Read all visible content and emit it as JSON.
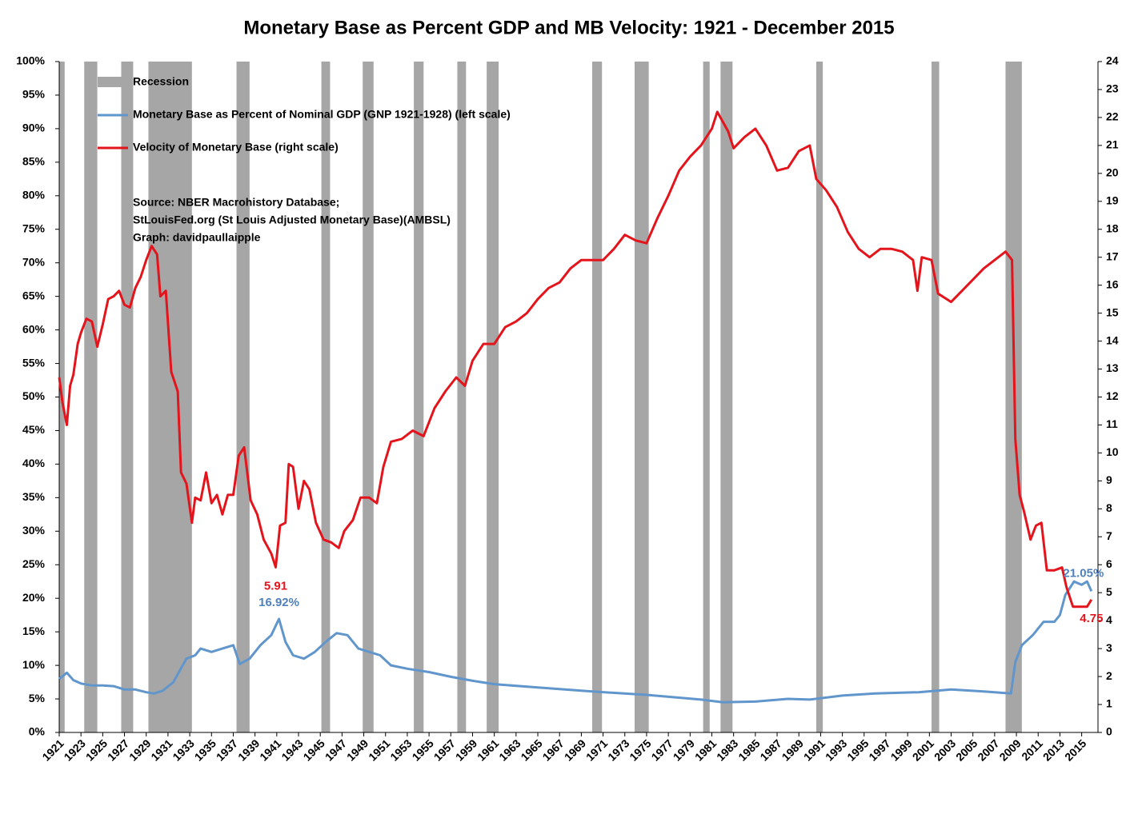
{
  "chart_data": {
    "type": "line",
    "title": "Monetary Base as Percent GDP and MB Velocity: 1921 - December 2015",
    "xlim": [
      1921,
      2016.5
    ],
    "xticks": [
      1921,
      1923,
      1925,
      1927,
      1929,
      1931,
      1933,
      1935,
      1937,
      1939,
      1941,
      1943,
      1945,
      1947,
      1949,
      1951,
      1953,
      1955,
      1957,
      1959,
      1961,
      1963,
      1965,
      1967,
      1969,
      1971,
      1973,
      1975,
      1977,
      1979,
      1981,
      1983,
      1985,
      1987,
      1989,
      1991,
      1993,
      1995,
      1997,
      1999,
      2001,
      2003,
      2005,
      2007,
      2009,
      2011,
      2013,
      2015
    ],
    "ylim": [
      0,
      100
    ],
    "yticks": [
      {
        "value": 0,
        "label": "0%"
      },
      {
        "value": 5,
        "label": "5%"
      },
      {
        "value": 10,
        "label": "10%"
      },
      {
        "value": 15,
        "label": "15%"
      },
      {
        "value": 20,
        "label": "20%"
      },
      {
        "value": 25,
        "label": "25%"
      },
      {
        "value": 30,
        "label": "30%"
      },
      {
        "value": 35,
        "label": "35%"
      },
      {
        "value": 40,
        "label": "40%"
      },
      {
        "value": 45,
        "label": "45%"
      },
      {
        "value": 50,
        "label": "50%"
      },
      {
        "value": 55,
        "label": "55%"
      },
      {
        "value": 60,
        "label": "60%"
      },
      {
        "value": 65,
        "label": "65%"
      },
      {
        "value": 70,
        "label": "70%"
      },
      {
        "value": 75,
        "label": "75%"
      },
      {
        "value": 80,
        "label": "80%"
      },
      {
        "value": 85,
        "label": "85%"
      },
      {
        "value": 90,
        "label": "90%"
      },
      {
        "value": 95,
        "label": "95%"
      },
      {
        "value": 100,
        "label": "100%"
      }
    ],
    "y2lim": [
      0,
      24
    ],
    "y2ticks": [
      0,
      1,
      2,
      3,
      4,
      5,
      6,
      7,
      8,
      9,
      10,
      11,
      12,
      13,
      14,
      15,
      16,
      17,
      18,
      19,
      20,
      21,
      22,
      23,
      24
    ],
    "recession_name": "Recession",
    "recession_color": "#a6a6a6",
    "recessions": [
      [
        1921.0,
        1921.5
      ],
      [
        1923.3,
        1924.5
      ],
      [
        1926.7,
        1927.8
      ],
      [
        1929.2,
        1933.2
      ],
      [
        1937.3,
        1938.5
      ],
      [
        1945.1,
        1945.9
      ],
      [
        1948.9,
        1949.9
      ],
      [
        1953.6,
        1954.5
      ],
      [
        1957.6,
        1958.4
      ],
      [
        1960.3,
        1961.4
      ],
      [
        1970.0,
        1970.9
      ],
      [
        1973.9,
        1975.2
      ],
      [
        1980.2,
        1980.8
      ],
      [
        1981.8,
        1982.9
      ],
      [
        1990.6,
        1991.2
      ],
      [
        2001.2,
        2001.9
      ],
      [
        2008.0,
        2009.5
      ]
    ],
    "series": [
      {
        "name": "Monetary Base as Percent of Nominal GDP (GNP 1921-1928) (left scale)",
        "color": "#6196cc",
        "axis": "y",
        "x": [
          1921,
          1921.7,
          1922.3,
          1923,
          1924,
          1925,
          1926,
          1927,
          1928,
          1929,
          1929.7,
          1930.5,
          1931.5,
          1932,
          1932.7,
          1933.5,
          1934,
          1935,
          1936,
          1937,
          1937.6,
          1938.5,
          1939.5,
          1940.5,
          1941.2,
          1941.8,
          1942.5,
          1943.5,
          1944.5,
          1945.5,
          1946.5,
          1947.5,
          1948.5,
          1949.5,
          1950.5,
          1951.5,
          1953,
          1955,
          1957,
          1959,
          1961,
          1965,
          1970,
          1975,
          1980,
          1982,
          1985,
          1988,
          1990,
          1993,
          1996,
          2000,
          2003,
          2006,
          2008.5,
          2008.9,
          2009.5,
          2010.5,
          2011.5,
          2012.5,
          2013,
          2013.5,
          2014.3,
          2015,
          2015.5,
          2015.9
        ],
        "values": [
          8.0,
          8.9,
          7.8,
          7.3,
          7.0,
          7.0,
          6.9,
          6.4,
          6.4,
          6.0,
          5.8,
          6.2,
          7.5,
          9.0,
          11.0,
          11.5,
          12.5,
          12.0,
          12.5,
          13.0,
          10.2,
          11.0,
          13.0,
          14.5,
          16.92,
          13.5,
          11.5,
          11.0,
          12.0,
          13.5,
          14.8,
          14.5,
          12.5,
          12.0,
          11.5,
          10.0,
          9.5,
          9.0,
          8.3,
          7.7,
          7.2,
          6.7,
          6.1,
          5.6,
          4.9,
          4.5,
          4.6,
          5.0,
          4.9,
          5.5,
          5.8,
          6.0,
          6.4,
          6.1,
          5.8,
          10.5,
          13.0,
          14.5,
          16.5,
          16.5,
          17.5,
          20.5,
          22.5,
          22.0,
          22.5,
          21.05
        ]
      },
      {
        "name": "Velocity of Monetary Base (right scale)",
        "color": "#e3141b",
        "axis": "y2",
        "x": [
          1921.0,
          1921.3,
          1921.7,
          1922.0,
          1922.3,
          1922.7,
          1923,
          1923.5,
          1924,
          1924.5,
          1925,
          1925.5,
          1926,
          1926.5,
          1927,
          1927.5,
          1928,
          1928.5,
          1929,
          1929.5,
          1930,
          1930.3,
          1930.8,
          1931.3,
          1931.9,
          1932.2,
          1932.7,
          1933.2,
          1933.5,
          1934,
          1934.5,
          1935,
          1935.5,
          1936,
          1936.5,
          1937,
          1937.5,
          1938,
          1938.6,
          1939.2,
          1939.8,
          1940.5,
          1940.9,
          1941.3,
          1941.8,
          1942.1,
          1942.5,
          1943,
          1943.5,
          1944,
          1944.6,
          1945.3,
          1946,
          1946.7,
          1947.2,
          1948,
          1948.7,
          1949.5,
          1950.2,
          1950.8,
          1951.5,
          1952.5,
          1953.5,
          1954.5,
          1955.5,
          1956.5,
          1957.5,
          1958.3,
          1959,
          1960,
          1961,
          1962,
          1963,
          1964,
          1965,
          1966,
          1967,
          1968,
          1969,
          1970,
          1971,
          1972,
          1973,
          1974,
          1975,
          1976,
          1977,
          1978,
          1979,
          1980,
          1981,
          1981.5,
          1982.5,
          1983,
          1984,
          1985,
          1986,
          1987,
          1988,
          1989,
          1990,
          1990.6,
          1991.5,
          1992.5,
          1993.5,
          1994.5,
          1995.5,
          1996.5,
          1997.5,
          1998.5,
          1999.5,
          1999.9,
          2000.3,
          2001.2,
          2001.8,
          2003,
          2004,
          2005,
          2006,
          2007,
          2008.0,
          2008.6,
          2008.9,
          2009.3,
          2009.7,
          2010.3,
          2010.8,
          2011.3,
          2011.8,
          2012.5,
          2013.2,
          2013.6,
          2014.2,
          2015,
          2015.5,
          2015.9
        ],
        "values": [
          12.7,
          11.8,
          11.0,
          12.4,
          12.8,
          13.9,
          14.3,
          14.8,
          14.7,
          13.8,
          14.6,
          15.5,
          15.6,
          15.8,
          15.3,
          15.2,
          15.9,
          16.3,
          16.9,
          17.4,
          17.1,
          15.6,
          15.8,
          12.9,
          12.2,
          9.3,
          8.9,
          7.5,
          8.4,
          8.3,
          9.3,
          8.2,
          8.5,
          7.8,
          8.5,
          8.5,
          9.9,
          10.2,
          8.3,
          7.8,
          6.9,
          6.4,
          5.91,
          7.4,
          7.5,
          9.6,
          9.5,
          8.0,
          9.0,
          8.7,
          7.5,
          6.9,
          6.8,
          6.6,
          7.2,
          7.6,
          8.4,
          8.4,
          8.2,
          9.5,
          10.4,
          10.5,
          10.8,
          10.6,
          11.6,
          12.2,
          12.7,
          12.4,
          13.3,
          13.9,
          13.9,
          14.5,
          14.7,
          15.0,
          15.5,
          15.9,
          16.1,
          16.6,
          16.9,
          16.9,
          16.9,
          17.3,
          17.8,
          17.6,
          17.5,
          18.4,
          19.2,
          20.1,
          20.6,
          21.0,
          21.6,
          22.2,
          21.5,
          20.9,
          21.3,
          21.6,
          21.0,
          20.1,
          20.2,
          20.8,
          21.0,
          19.8,
          19.4,
          18.8,
          17.9,
          17.3,
          17.0,
          17.3,
          17.3,
          17.2,
          16.9,
          15.8,
          17.0,
          16.9,
          15.7,
          15.4,
          15.8,
          16.2,
          16.6,
          16.9,
          17.2,
          16.9,
          10.5,
          8.5,
          7.9,
          6.9,
          7.4,
          7.5,
          5.8,
          5.8,
          5.9,
          5.2,
          4.5,
          4.5,
          4.5,
          4.75
        ]
      }
    ],
    "annotations": [
      {
        "text": "16.92%",
        "x": 1941.2,
        "value": 16.92,
        "axis": "y",
        "color": "#4f81bd"
      },
      {
        "text": "5.91",
        "x": 1940.9,
        "value": 5.91,
        "axis": "y2",
        "color": "#e3141b"
      },
      {
        "text": "21.05%",
        "x": 2015.9,
        "value": 21.05,
        "axis": "y",
        "color": "#4f81bd"
      },
      {
        "text": "4.75",
        "x": 2015.9,
        "value": 4.75,
        "axis": "y2",
        "color": "#e3141b"
      }
    ],
    "source": [
      "Source: NBER Macrohistory Database;",
      "StLouisFed.org (St Louis Adjusted Monetary Base)(AMBSL)",
      "Graph: davidpaullaipple"
    ]
  }
}
